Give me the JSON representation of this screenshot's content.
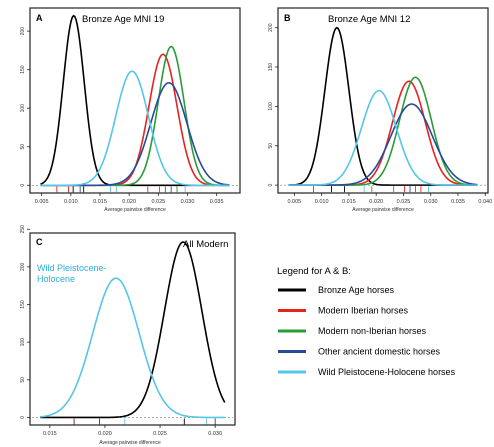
{
  "figure": {
    "colors": {
      "bronze": "#000000",
      "iberian": "#e8231e",
      "non_iberian": "#2a9b3a",
      "ancient": "#274b9a",
      "wild": "#55c6e8"
    }
  },
  "legend": {
    "title": "Legend for A & B:",
    "items": [
      {
        "label": "Bronze Age horses",
        "color": "#000000"
      },
      {
        "label": "Modern Iberian horses",
        "color": "#e8231e"
      },
      {
        "label": "Modern non-Iberian horses",
        "color": "#2a9b3a"
      },
      {
        "label": "Other ancient domestic horses",
        "color": "#274b9a"
      },
      {
        "label": "Wild Pleistocene-Holocene horses",
        "color": "#55c6e8"
      }
    ]
  },
  "chart_data": [
    {
      "panel": "A",
      "type": "line",
      "title": "Bronze Age MNI 19",
      "xlabel": "Average pairwise difference",
      "ylabel": "",
      "xlim": [
        0.003,
        0.039
      ],
      "ylim": [
        -10,
        230
      ],
      "xticks": [
        "0.005",
        "0.010",
        "0.015",
        "0.020",
        "0.025",
        "0.030",
        "0.035"
      ],
      "xtick_values": [
        0.005,
        0.01,
        0.015,
        0.02,
        0.025,
        0.03,
        0.035
      ],
      "yticks": [
        "0",
        "50",
        "100",
        "150",
        "200"
      ],
      "ytick_values": [
        0,
        50,
        100,
        150,
        200
      ],
      "series": [
        {
          "key": "bronze",
          "color": "#000000",
          "mean": 0.0105,
          "sd": 0.0018,
          "peak": 220
        },
        {
          "key": "iberian",
          "color": "#e8231e",
          "mean": 0.0258,
          "sd": 0.0024,
          "peak": 170
        },
        {
          "key": "non_iberian",
          "color": "#2a9b3a",
          "mean": 0.0272,
          "sd": 0.0022,
          "peak": 180
        },
        {
          "key": "ancient",
          "color": "#274b9a",
          "mean": 0.0268,
          "sd": 0.0031,
          "peak": 133
        },
        {
          "key": "wild",
          "color": "#55c6e8",
          "mean": 0.0205,
          "sd": 0.0028,
          "peak": 148
        }
      ],
      "rug": [
        {
          "x": 0.0076,
          "color": "#e8231e"
        },
        {
          "x": 0.0096,
          "color": "#e8231e"
        },
        {
          "x": 0.0104,
          "color": "#000000"
        },
        {
          "x": 0.0116,
          "color": "#274b9a"
        },
        {
          "x": 0.0122,
          "color": "#000000"
        },
        {
          "x": 0.0168,
          "color": "#55c6e8"
        },
        {
          "x": 0.0178,
          "color": "#55c6e8"
        },
        {
          "x": 0.0232,
          "color": "#e8231e"
        },
        {
          "x": 0.0252,
          "color": "#2a9b3a"
        },
        {
          "x": 0.0262,
          "color": "#e8231e"
        },
        {
          "x": 0.0272,
          "color": "#274b9a"
        },
        {
          "x": 0.0282,
          "color": "#2a9b3a"
        },
        {
          "x": 0.0296,
          "color": "#55c6e8"
        }
      ]
    },
    {
      "panel": "B",
      "type": "line",
      "title": "Bronze Age MNI 12",
      "xlabel": "Average pairwise difference",
      "ylabel": "",
      "xlim": [
        0.002,
        0.0405
      ],
      "ylim": [
        -10,
        225
      ],
      "xticks": [
        "0.005",
        "0.010",
        "0.015",
        "0.020",
        "0.025",
        "0.030",
        "0.035",
        "0.040"
      ],
      "xtick_values": [
        0.005,
        0.01,
        0.015,
        0.02,
        0.025,
        0.03,
        0.035,
        0.04
      ],
      "yticks": [
        "0",
        "50",
        "100",
        "150",
        "200"
      ],
      "ytick_values": [
        0,
        50,
        100,
        150,
        200
      ],
      "series": [
        {
          "key": "bronze",
          "color": "#000000",
          "mean": 0.0128,
          "sd": 0.0022,
          "peak": 200
        },
        {
          "key": "iberian",
          "color": "#e8231e",
          "mean": 0.026,
          "sd": 0.003,
          "peak": 132
        },
        {
          "key": "non_iberian",
          "color": "#2a9b3a",
          "mean": 0.0272,
          "sd": 0.0029,
          "peak": 137
        },
        {
          "key": "ancient",
          "color": "#274b9a",
          "mean": 0.0265,
          "sd": 0.0038,
          "peak": 103
        },
        {
          "key": "wild",
          "color": "#55c6e8",
          "mean": 0.0205,
          "sd": 0.0032,
          "peak": 120
        }
      ],
      "rug": [
        {
          "x": 0.0085,
          "color": "#e8231e"
        },
        {
          "x": 0.0118,
          "color": "#000000"
        },
        {
          "x": 0.0142,
          "color": "#000000"
        },
        {
          "x": 0.0178,
          "color": "#55c6e8"
        },
        {
          "x": 0.0192,
          "color": "#2a9b3a"
        },
        {
          "x": 0.0232,
          "color": "#2a9b3a"
        },
        {
          "x": 0.0252,
          "color": "#e8231e"
        },
        {
          "x": 0.0262,
          "color": "#274b9a"
        },
        {
          "x": 0.0272,
          "color": "#2a9b3a"
        },
        {
          "x": 0.0282,
          "color": "#e8231e"
        },
        {
          "x": 0.0296,
          "color": "#55c6e8"
        }
      ]
    },
    {
      "panel": "C",
      "type": "line",
      "title": "All Modern",
      "annotation": "Wild Pleistocene-Holocene",
      "xlabel": "Average pairwise difference",
      "ylabel": "",
      "xlim": [
        0.0132,
        0.0318
      ],
      "ylim": [
        -10,
        245
      ],
      "xticks": [
        "0.015",
        "0.020",
        "0.025",
        "0.030"
      ],
      "xtick_values": [
        0.015,
        0.02,
        0.025,
        0.03
      ],
      "yticks": [
        "0",
        "50",
        "100",
        "150",
        "200",
        "250"
      ],
      "ytick_values": [
        0,
        50,
        100,
        150,
        200,
        250
      ],
      "series": [
        {
          "key": "bronze",
          "color": "#000000",
          "mean": 0.0271,
          "sd": 0.0017,
          "peak": 233
        },
        {
          "key": "wild",
          "color": "#55c6e8",
          "mean": 0.021,
          "sd": 0.0021,
          "peak": 185
        }
      ],
      "rug": [
        {
          "x": 0.0172,
          "color": "#8b1a1a"
        },
        {
          "x": 0.0195,
          "color": "#8b1a1a"
        },
        {
          "x": 0.0218,
          "color": "#55c6e8"
        },
        {
          "x": 0.0272,
          "color": "#000000"
        },
        {
          "x": 0.0292,
          "color": "#55c6e8"
        },
        {
          "x": 0.03,
          "color": "#8b1a1a"
        }
      ]
    }
  ]
}
